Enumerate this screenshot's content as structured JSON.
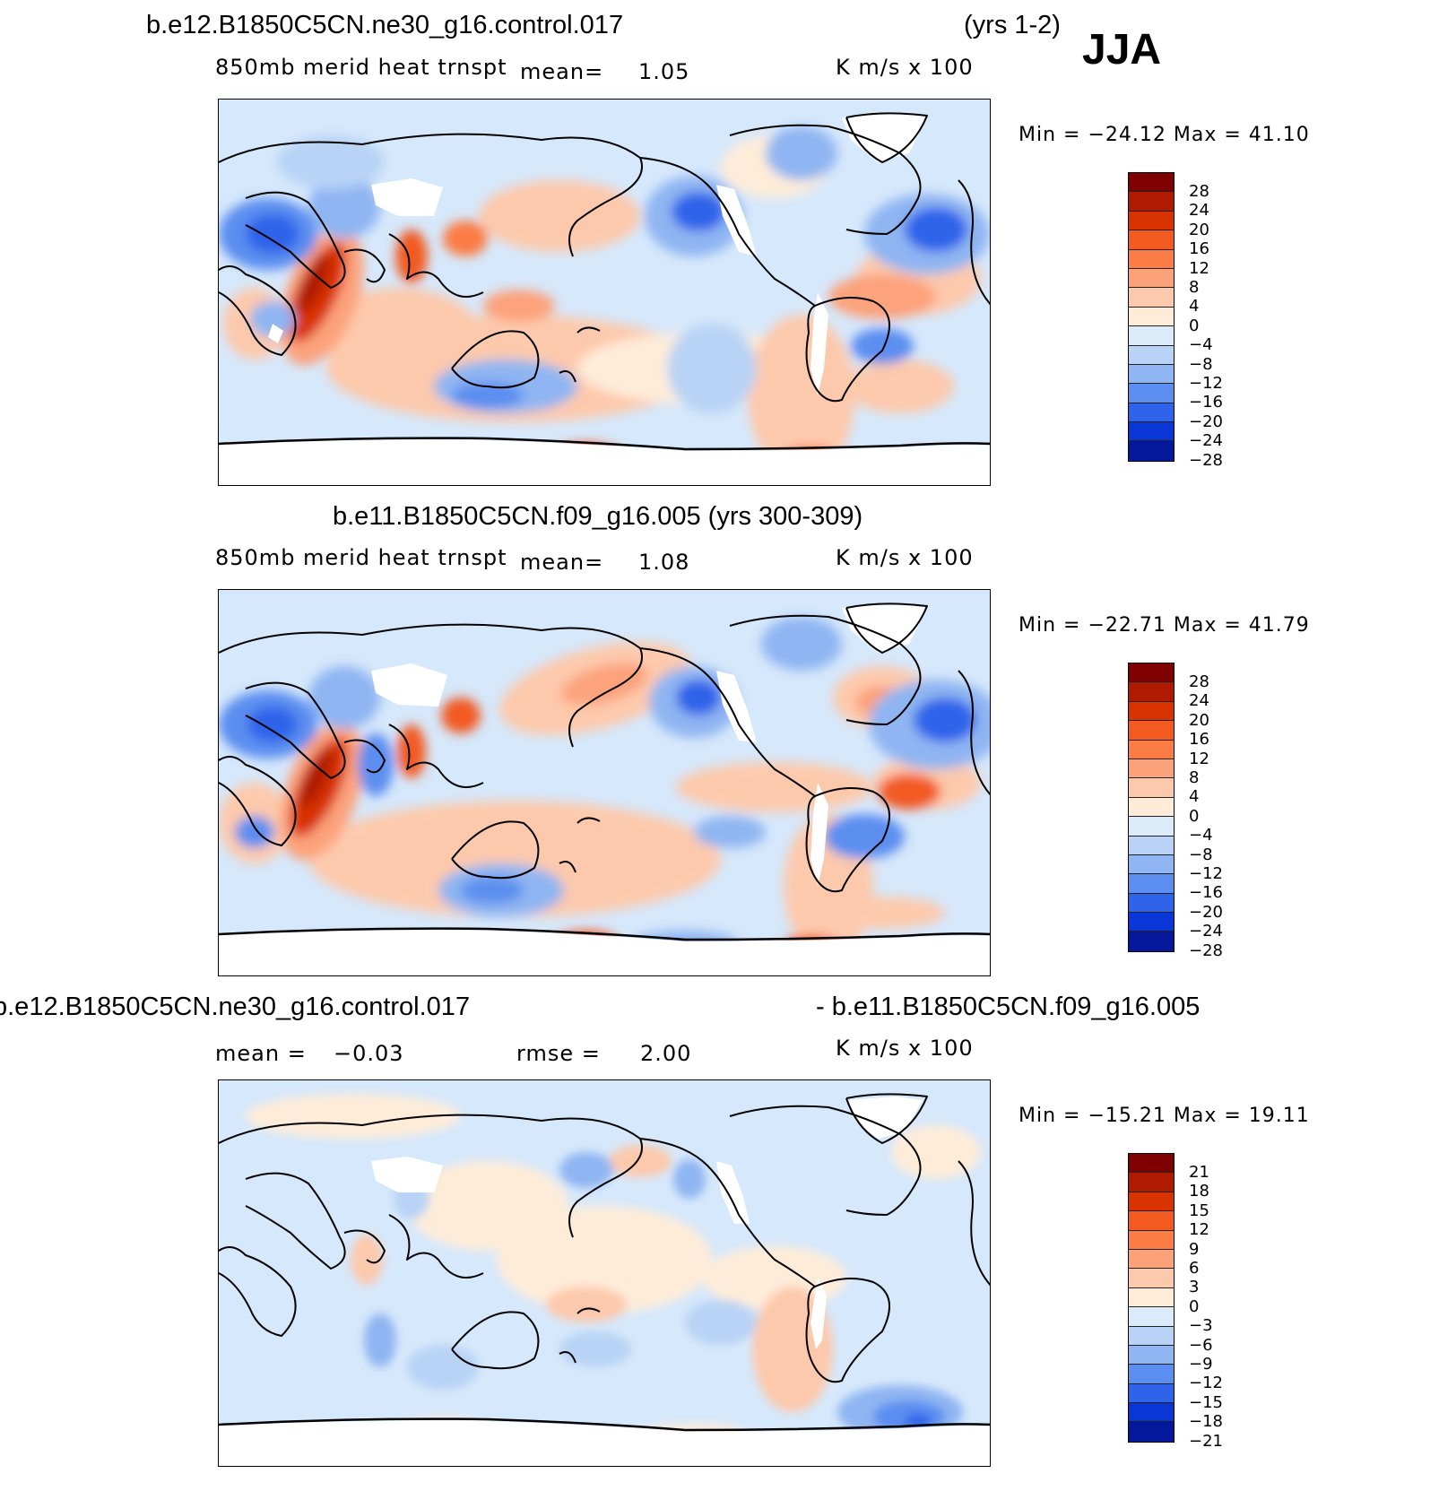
{
  "header": {
    "case1": "b.e12.B1850C5CN.ne30_g16.control.017",
    "case1_years": "(yrs 1-2)",
    "season": "JJA",
    "case2": "b.e11.B1850C5CN.f09_g16.005 (yrs 300-309)",
    "diff_left": "b.e12.B1850C5CN.ne30_g16.control.017",
    "diff_right": "- b.e11.B1850C5CN.f09_g16.005"
  },
  "panels": [
    {
      "id": "case1",
      "variable": "850mb  merid  heat  trnspt",
      "mean_label": "mean=",
      "mean_value": "1.05",
      "units": "K  m/s  x  100",
      "minmax": "Min  =  −24.12  Max  =    41.10",
      "levels": [
        "28",
        "24",
        "20",
        "16",
        "12",
        "8",
        "4",
        "0",
        "−4",
        "−8",
        "−12",
        "−16",
        "−20",
        "−24",
        "−28"
      ]
    },
    {
      "id": "case2",
      "variable": "850mb  merid  heat  trnspt",
      "mean_label": "mean=",
      "mean_value": "1.08",
      "units": "K  m/s  x  100",
      "minmax": "Min  =  −22.71  Max  =    41.79",
      "levels": [
        "28",
        "24",
        "20",
        "16",
        "12",
        "8",
        "4",
        "0",
        "−4",
        "−8",
        "−12",
        "−16",
        "−20",
        "−24",
        "−28"
      ]
    },
    {
      "id": "diff",
      "mean_label": "mean  =",
      "mean_value": "−0.03",
      "rmse_label": "rmse  =",
      "rmse_value": "2.00",
      "units": "K  m/s  x  100",
      "minmax": "Min  =  −15.21  Max  =    19.11",
      "levels": [
        "21",
        "18",
        "15",
        "12",
        "9",
        "6",
        "3",
        "0",
        "−3",
        "−6",
        "−9",
        "−12",
        "−15",
        "−18",
        "−21"
      ]
    }
  ],
  "colorbar_colors": [
    "#7f0000",
    "#b01b00",
    "#d83300",
    "#f25a20",
    "#fb7c45",
    "#fca27b",
    "#fdc9ac",
    "#feecd9",
    "#dcebfa",
    "#b8d3f5",
    "#8fb5f2",
    "#5b8ef0",
    "#2f63ea",
    "#0a36d8",
    "#05179a"
  ]
}
